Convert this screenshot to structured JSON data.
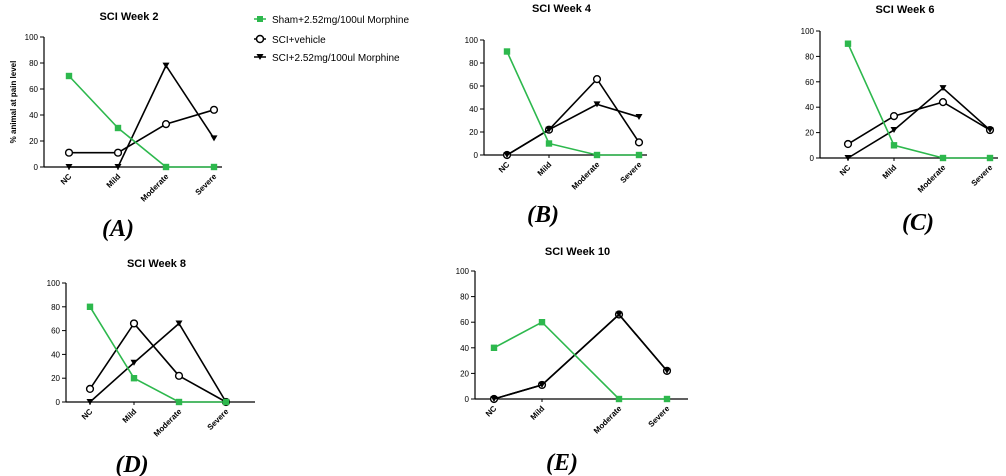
{
  "legend": [
    {
      "name": "Sham+2.52mg/100ul Morphine",
      "color": "#2db84d",
      "marker": "square"
    },
    {
      "name": "SCI+vehicle",
      "color": "#000000",
      "marker": "open-circle"
    },
    {
      "name": "SCI+2.52mg/100ul Morphine",
      "color": "#000000",
      "marker": "down-triangle"
    }
  ],
  "y_axis_title": "% animal at pain level",
  "chart_data": [
    {
      "type": "line",
      "panel": "(A)",
      "title": "SCI Week 2",
      "categories": [
        "NC",
        "Mild",
        "Moderate",
        "Severe"
      ],
      "ylabel": "% animal at pain level",
      "ylim": [
        0,
        100
      ],
      "yticks": [
        0,
        20,
        40,
        60,
        80,
        100
      ],
      "series": [
        {
          "name": "Sham+2.52mg/100ul Morphine",
          "values": [
            70,
            30,
            0,
            0
          ]
        },
        {
          "name": "SCI+vehicle",
          "values": [
            11,
            11,
            33,
            44
          ]
        },
        {
          "name": "SCI+2.52mg/100ul Morphine",
          "values": [
            0,
            0,
            78,
            22
          ]
        }
      ]
    },
    {
      "type": "line",
      "panel": "(B)",
      "title": "SCI Week 4",
      "categories": [
        "NC",
        "Mild",
        "Moderate",
        "Severe"
      ],
      "ylim": [
        0,
        100
      ],
      "yticks": [
        0,
        20,
        40,
        60,
        80,
        100
      ],
      "series": [
        {
          "name": "Sham+2.52mg/100ul Morphine",
          "values": [
            90,
            10,
            0,
            0
          ]
        },
        {
          "name": "SCI+vehicle",
          "values": [
            0,
            22,
            66,
            11
          ]
        },
        {
          "name": "SCI+2.52mg/100ul Morphine",
          "values": [
            0,
            22,
            44,
            33
          ]
        }
      ]
    },
    {
      "type": "line",
      "panel": "(C)",
      "title": "SCI Week 6",
      "categories": [
        "NC",
        "Mild",
        "Moderate",
        "Severe"
      ],
      "ylim": [
        0,
        100
      ],
      "yticks": [
        0,
        20,
        40,
        60,
        80,
        100
      ],
      "series": [
        {
          "name": "Sham+2.52mg/100ul Morphine",
          "values": [
            90,
            10,
            0,
            0
          ]
        },
        {
          "name": "SCI+vehicle",
          "values": [
            11,
            33,
            44,
            22
          ]
        },
        {
          "name": "SCI+2.52mg/100ul Morphine",
          "values": [
            0,
            22,
            55,
            22
          ]
        }
      ]
    },
    {
      "type": "line",
      "panel": "(D)",
      "title": "SCI Week 8",
      "categories": [
        "NC",
        "Mild",
        "Moderate",
        "Severe"
      ],
      "ylim": [
        0,
        100
      ],
      "yticks": [
        0,
        20,
        40,
        60,
        80,
        100
      ],
      "series": [
        {
          "name": "Sham+2.52mg/100ul Morphine",
          "values": [
            80,
            20,
            0,
            0
          ]
        },
        {
          "name": "SCI+vehicle",
          "values": [
            11,
            66,
            22,
            0
          ]
        },
        {
          "name": "SCI+2.52mg/100ul Morphine",
          "values": [
            0,
            33,
            66,
            0
          ]
        }
      ]
    },
    {
      "type": "line",
      "panel": "(E)",
      "title": "SCI Week 10",
      "categories": [
        "NC",
        "Mild",
        "Moderate",
        "Severe"
      ],
      "ylim": [
        0,
        100
      ],
      "yticks": [
        0,
        20,
        40,
        60,
        80,
        100
      ],
      "series": [
        {
          "name": "Sham+2.52mg/100ul Morphine",
          "values": [
            40,
            60,
            0,
            0
          ]
        },
        {
          "name": "SCI+vehicle",
          "values": [
            0,
            11,
            66,
            22
          ]
        },
        {
          "name": "SCI+2.52mg/100ul Morphine",
          "values": [
            0,
            11,
            66,
            22
          ]
        }
      ]
    }
  ]
}
